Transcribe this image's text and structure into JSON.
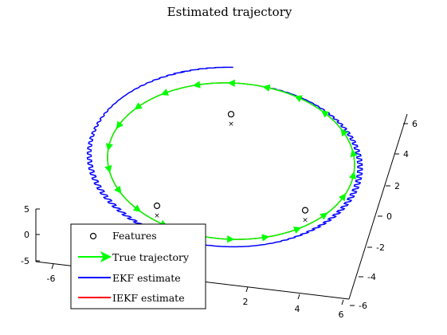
{
  "chart_data": {
    "type": "line",
    "title": "Estimated trajectory",
    "xlabel": "",
    "ylabel": "",
    "zlabel": "",
    "projection": "3d",
    "grid": false,
    "legend_position": "bottom-left",
    "axes": {
      "x_ticks": [
        "-6",
        "2",
        "4",
        "6"
      ],
      "y_ticks": [
        "-6",
        "-4",
        "-2",
        "0",
        "2",
        "4",
        "6"
      ],
      "z_ticks": [
        "5",
        "0",
        "-5"
      ]
    },
    "legend": [
      {
        "label": "Features",
        "style": "marker",
        "color": "#000000"
      },
      {
        "label": "True trajectory",
        "style": "arrow-line",
        "color": "#00ff00"
      },
      {
        "label": "EKF estimate",
        "style": "line",
        "color": "#0000ff"
      },
      {
        "label": "IEKF estimate",
        "style": "line",
        "color": "#ff0000"
      }
    ],
    "series": [
      {
        "name": "True trajectory",
        "color": "#00ff00",
        "shape": "circle",
        "center": [
          0,
          0,
          0
        ],
        "radius": 5
      },
      {
        "name": "EKF estimate",
        "color": "#0000ff",
        "shape": "noisy-spiral",
        "center": [
          0,
          0,
          0
        ],
        "radius_start": 6,
        "radius_end": 5
      },
      {
        "name": "IEKF estimate",
        "color": "#ff0000",
        "shape": "circle",
        "center": [
          0,
          0,
          0
        ],
        "radius": 5
      }
    ],
    "features": [
      {
        "x": 0,
        "y": 3,
        "z": 0
      },
      {
        "x": -3,
        "y": -3,
        "z": 0
      },
      {
        "x": 3,
        "y": -3,
        "z": 0
      }
    ]
  }
}
